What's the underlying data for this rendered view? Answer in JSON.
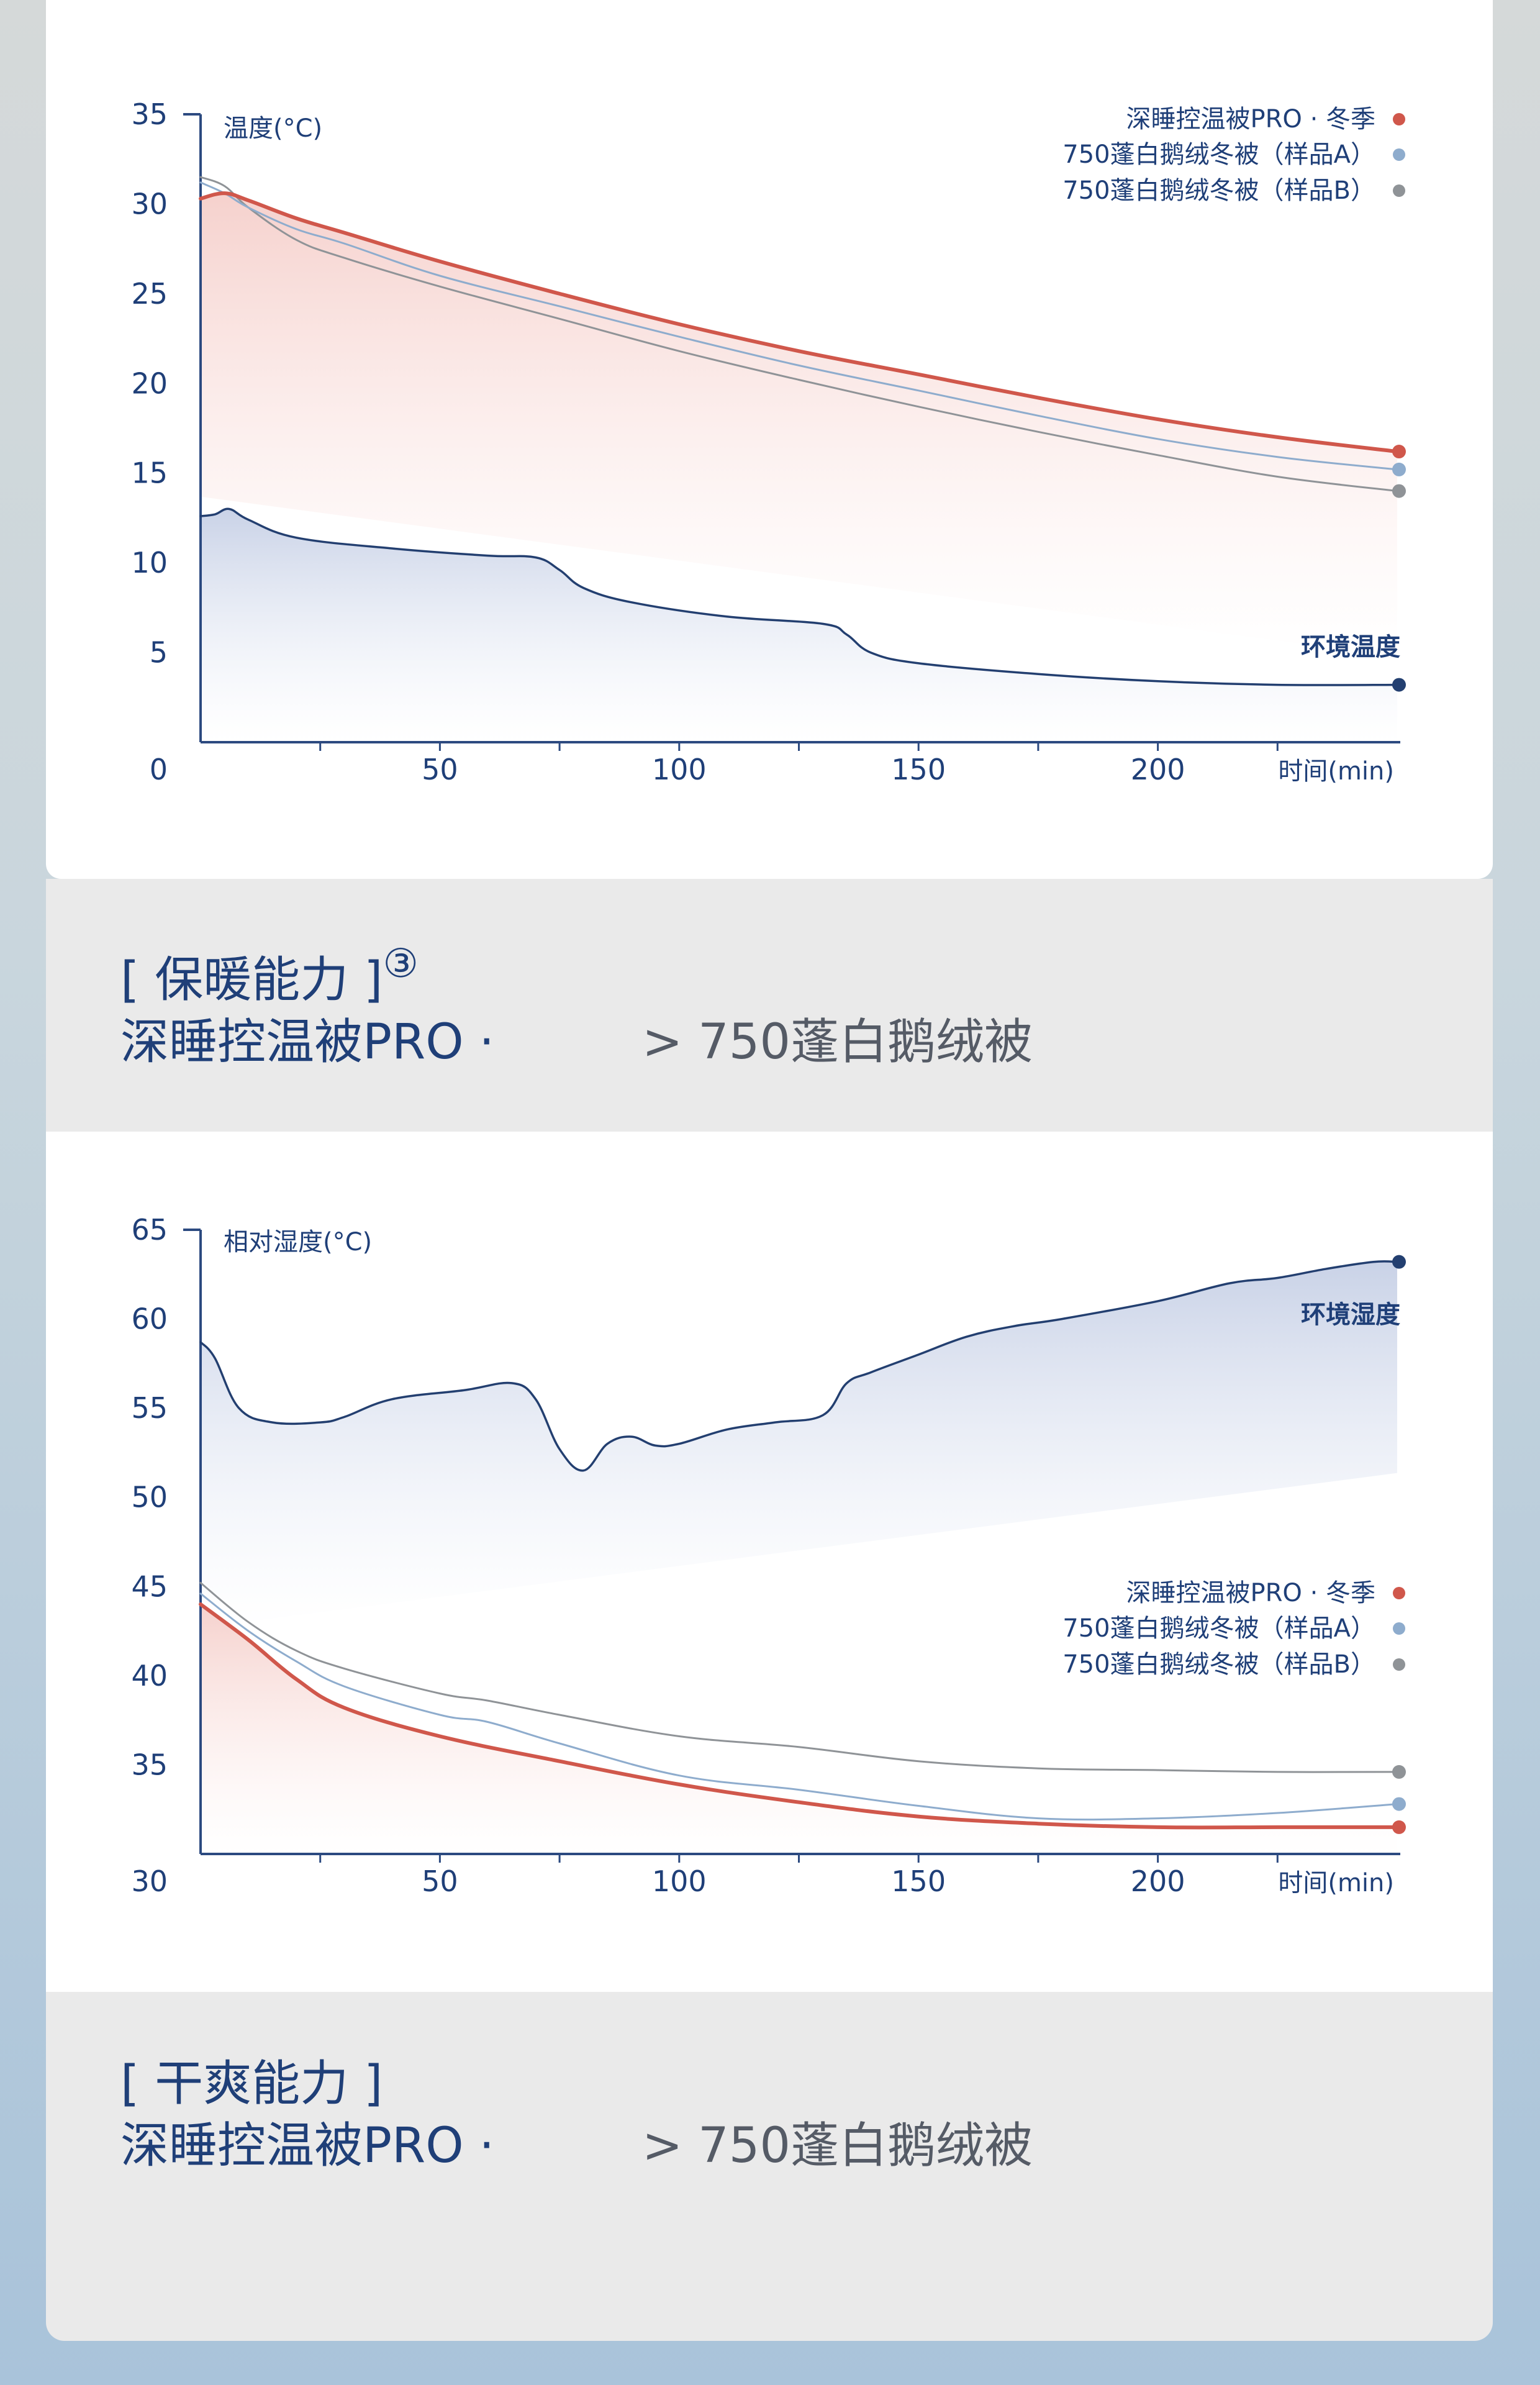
{
  "chart_data": [
    {
      "type": "line",
      "ylabel": "温度(°C)",
      "xlabel": "时间(min)",
      "xlim": [
        0,
        250
      ],
      "ylim": [
        0,
        35
      ],
      "y_ticks": [
        "35",
        "30",
        "25",
        "20",
        "15",
        "10",
        "5",
        "0"
      ],
      "x_ticks": [
        "50",
        "100",
        "150",
        "200"
      ],
      "legend": [
        {
          "name": "深睡控温被PRO · 冬季",
          "color": "#d0574b"
        },
        {
          "name": "750蓬白鹅绒冬被（样品A）",
          "color": "#8eaccd"
        },
        {
          "name": "750蓬白鹅绒冬被（样品B）",
          "color": "#8f9397"
        }
      ],
      "series": [
        {
          "name": "深睡控温被PRO · 冬季",
          "color": "#d0574b",
          "x": [
            0,
            5,
            10,
            20,
            30,
            50,
            75,
            100,
            125,
            150,
            175,
            200,
            225,
            250
          ],
          "y": [
            30.3,
            30.6,
            30.2,
            29.2,
            28.4,
            26.8,
            25.0,
            23.3,
            21.8,
            20.5,
            19.2,
            18.0,
            17.0,
            16.2
          ]
        },
        {
          "name": "750蓬白鹅绒冬被（样品A）",
          "color": "#8eaccd",
          "x": [
            0,
            5,
            10,
            20,
            30,
            50,
            75,
            100,
            125,
            150,
            175,
            200,
            225,
            250
          ],
          "y": [
            31.2,
            30.6,
            29.8,
            28.6,
            27.8,
            26.0,
            24.3,
            22.6,
            21.0,
            19.6,
            18.2,
            16.9,
            15.9,
            15.2
          ]
        },
        {
          "name": "750蓬白鹅绒冬被（样品B）",
          "color": "#8f9397",
          "x": [
            0,
            5,
            10,
            20,
            30,
            50,
            75,
            100,
            125,
            150,
            175,
            200,
            225,
            250
          ],
          "y": [
            31.5,
            31.0,
            29.8,
            28.0,
            27.0,
            25.4,
            23.6,
            21.8,
            20.2,
            18.7,
            17.3,
            16.0,
            14.8,
            14.0
          ]
        },
        {
          "name": "环境温度",
          "color": "#233f70",
          "x": [
            0,
            3,
            6,
            10,
            20,
            40,
            60,
            70,
            75,
            80,
            90,
            110,
            130,
            135,
            140,
            150,
            175,
            200,
            225,
            250
          ],
          "y": [
            12.6,
            12.7,
            13.0,
            12.4,
            11.4,
            10.8,
            10.4,
            10.3,
            9.6,
            8.6,
            7.8,
            7.0,
            6.6,
            6.0,
            5.0,
            4.4,
            3.8,
            3.4,
            3.2,
            3.2
          ]
        }
      ],
      "annotation": "环境温度"
    },
    {
      "type": "line",
      "ylabel": "相对湿度(°C)",
      "xlabel": "时间(min)",
      "xlim": [
        0,
        250
      ],
      "ylim": [
        30,
        65
      ],
      "y_ticks": [
        "65",
        "60",
        "55",
        "50",
        "45",
        "40",
        "35",
        "30"
      ],
      "x_ticks": [
        "50",
        "100",
        "150",
        "200"
      ],
      "legend": [
        {
          "name": "深睡控温被PRO · 冬季",
          "color": "#d0574b"
        },
        {
          "name": "750蓬白鹅绒冬被（样品A）",
          "color": "#8eaccd"
        },
        {
          "name": "750蓬白鹅绒冬被（样品B）",
          "color": "#8f9397"
        }
      ],
      "series": [
        {
          "name": "深睡控温被PRO · 冬季",
          "color": "#d0574b",
          "x": [
            0,
            10,
            20,
            30,
            50,
            75,
            100,
            125,
            150,
            175,
            200,
            225,
            250
          ],
          "y": [
            44.0,
            42.0,
            39.8,
            38.2,
            36.6,
            35.2,
            33.9,
            32.9,
            32.1,
            31.7,
            31.5,
            31.5,
            31.5
          ]
        },
        {
          "name": "750蓬白鹅绒冬被（样品A）",
          "color": "#8eaccd",
          "x": [
            0,
            10,
            20,
            30,
            50,
            60,
            75,
            100,
            125,
            150,
            175,
            200,
            225,
            250
          ],
          "y": [
            44.6,
            42.5,
            40.8,
            39.4,
            37.8,
            37.4,
            36.2,
            34.4,
            33.6,
            32.7,
            32.0,
            32.0,
            32.3,
            32.8
          ]
        },
        {
          "name": "750蓬白鹅绒冬被（样品B）",
          "color": "#8f9397",
          "x": [
            0,
            10,
            20,
            30,
            50,
            60,
            75,
            100,
            125,
            150,
            175,
            200,
            225,
            250
          ],
          "y": [
            45.2,
            43.0,
            41.4,
            40.4,
            39.0,
            38.6,
            37.8,
            36.6,
            36.0,
            35.2,
            34.8,
            34.7,
            34.6,
            34.6
          ]
        },
        {
          "name": "环境湿度",
          "color": "#233f70",
          "x": [
            0,
            3,
            8,
            15,
            25,
            30,
            40,
            55,
            65,
            70,
            75,
            80,
            85,
            90,
            95,
            100,
            110,
            120,
            130,
            135,
            140,
            150,
            160,
            170,
            180,
            200,
            215,
            225,
            235,
            245,
            250
          ],
          "y": [
            58.7,
            57.8,
            55.0,
            54.2,
            54.2,
            54.5,
            55.5,
            56.0,
            56.4,
            55.5,
            52.7,
            51.5,
            53.0,
            53.4,
            52.9,
            53.0,
            53.8,
            54.2,
            54.6,
            56.4,
            57.0,
            58.0,
            59.0,
            59.6,
            60.0,
            61.0,
            62.0,
            62.3,
            62.8,
            63.2,
            63.2
          ]
        }
      ],
      "annotation": "环境湿度"
    }
  ],
  "captions": [
    {
      "title": "[ 保暖能力 ]",
      "footnote": "③",
      "subject": "深睡控温被PRO ·",
      "compare": "> 750蓬白鹅绒被"
    },
    {
      "title": "[ 干爽能力 ]",
      "subject": "深睡控温被PRO ·",
      "compare": "> 750蓬白鹅绒被"
    }
  ]
}
